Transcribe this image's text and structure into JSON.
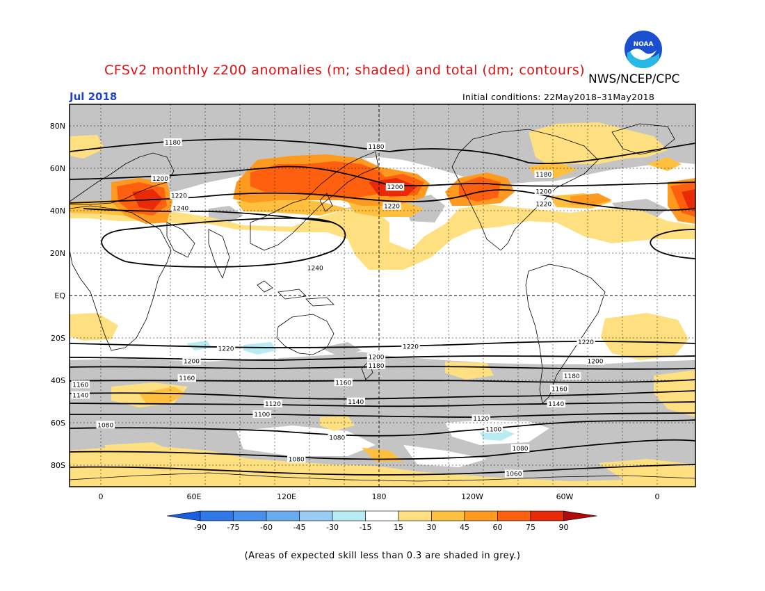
{
  "title": "CFSv2 monthly z200 anomalies (m; shaded) and total (dm; contours)",
  "agency": "NWS/NCEP/CPC",
  "logo_text": "NOAA",
  "month_label": "Jul 2018",
  "initial_conditions": "Initial conditions: 22May2018–31May2018",
  "footnote": "(Areas of expected skill less than 0.3 are shaded in grey.)",
  "axes": {
    "lat_ticks": [
      "80N",
      "60N",
      "40N",
      "20N",
      "EQ",
      "20S",
      "40S",
      "60S",
      "80S"
    ],
    "lon_ticks": [
      "0",
      "60E",
      "120E",
      "180",
      "120W",
      "60W",
      "0"
    ]
  },
  "colorbar": {
    "labels": [
      "-90",
      "-75",
      "-60",
      "-45",
      "-30",
      "-15",
      "15",
      "30",
      "45",
      "60",
      "75",
      "90"
    ],
    "colors": [
      "#1860e0",
      "#2f78e8",
      "#4890ec",
      "#68acf0",
      "#98ccf4",
      "#b8ecf4",
      "#ffffff",
      "#ffe080",
      "#ffc040",
      "#ff9a20",
      "#ff6010",
      "#e82a08",
      "#b00a0a"
    ]
  },
  "colors": {
    "grey_skill": "#c4c4c4",
    "title": "#e01010",
    "month": "#2244cc"
  },
  "contour_labels": [
    {
      "text": "1180",
      "lon": 46,
      "lat": 72
    },
    {
      "text": "1180",
      "lon": 176,
      "lat": 70
    },
    {
      "text": "1180",
      "lon": 283,
      "lat": 57
    },
    {
      "text": "1200",
      "lon": 38,
      "lat": 55
    },
    {
      "text": "1200",
      "lon": 188,
      "lat": 51
    },
    {
      "text": "1200",
      "lon": 283,
      "lat": 49
    },
    {
      "text": "1220",
      "lon": 50,
      "lat": 47
    },
    {
      "text": "1220",
      "lon": 186,
      "lat": 42
    },
    {
      "text": "1220",
      "lon": 283,
      "lat": 43
    },
    {
      "text": "1240",
      "lon": 51,
      "lat": 41
    },
    {
      "text": "1240",
      "lon": 137,
      "lat": 13
    },
    {
      "text": "1220",
      "lon": 80,
      "lat": -25
    },
    {
      "text": "1220",
      "lon": 198,
      "lat": -24
    },
    {
      "text": "1220",
      "lon": 310,
      "lat": -22
    },
    {
      "text": "1200",
      "lon": 58,
      "lat": -31
    },
    {
      "text": "1200",
      "lon": 176,
      "lat": -29
    },
    {
      "text": "1200",
      "lon": 316,
      "lat": -31
    },
    {
      "text": "1180",
      "lon": 176,
      "lat": -33
    },
    {
      "text": "1180",
      "lon": 301,
      "lat": -38
    },
    {
      "text": "1160",
      "lon": 55,
      "lat": -39
    },
    {
      "text": "1160",
      "lon": 155,
      "lat": -41
    },
    {
      "text": "1160",
      "lon": 293,
      "lat": -44
    },
    {
      "text": "1160",
      "lon": -13,
      "lat": -42
    },
    {
      "text": "1140",
      "lon": -13,
      "lat": -47
    },
    {
      "text": "1140",
      "lon": 163,
      "lat": -50
    },
    {
      "text": "1140",
      "lon": 291,
      "lat": -51
    },
    {
      "text": "1120",
      "lon": 110,
      "lat": -51
    },
    {
      "text": "1120",
      "lon": 243,
      "lat": -58
    },
    {
      "text": "1100",
      "lon": 103,
      "lat": -56
    },
    {
      "text": "1100",
      "lon": 251,
      "lat": -63
    },
    {
      "text": "1080",
      "lon": 3,
      "lat": -61
    },
    {
      "text": "1080",
      "lon": 151,
      "lat": -67
    },
    {
      "text": "1080",
      "lon": 268,
      "lat": -72
    },
    {
      "text": "1080",
      "lon": 125,
      "lat": -77
    },
    {
      "text": "1060",
      "lon": 264,
      "lat": -84
    }
  ]
}
